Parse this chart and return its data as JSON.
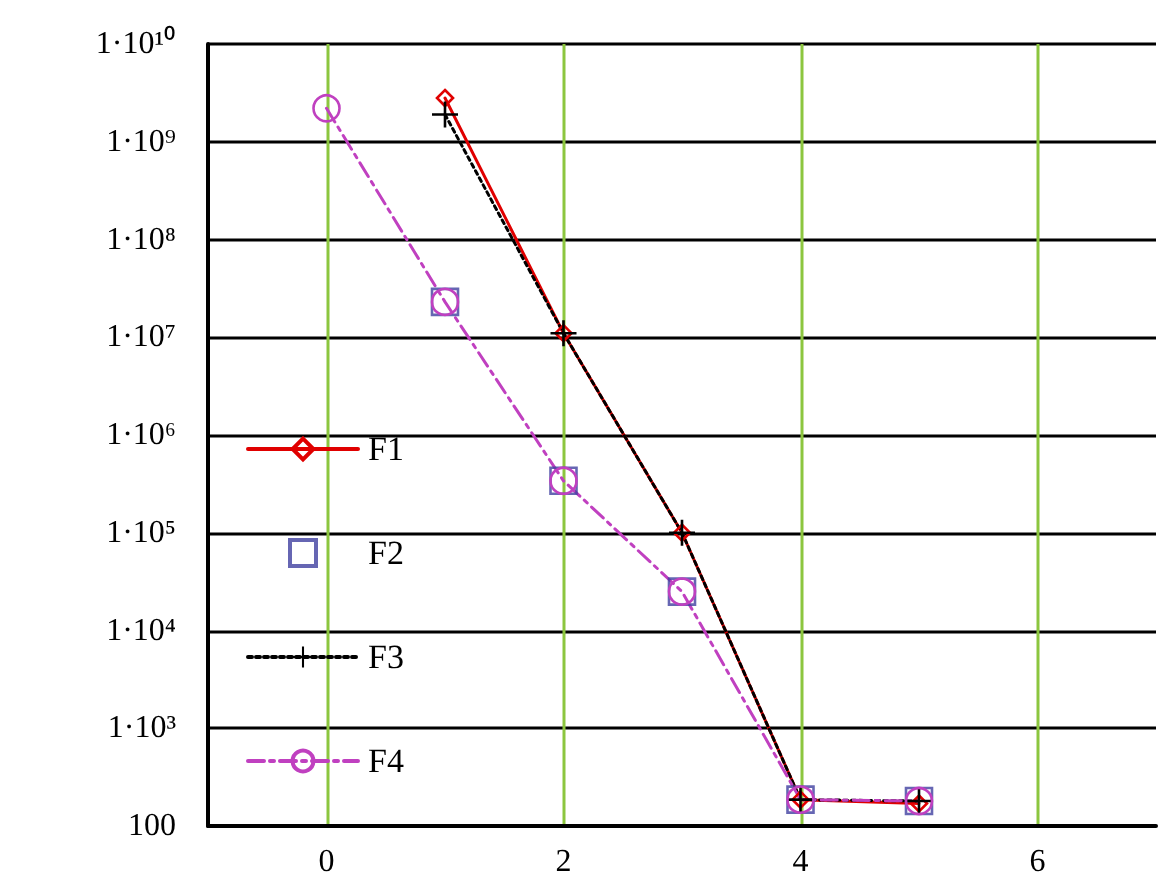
{
  "chart_data": {
    "type": "line",
    "series": [
      {
        "name": "F1",
        "color": "#e00000",
        "marker": "diamond",
        "line_style": "solid",
        "x": [
          1,
          2,
          3,
          4,
          5
        ],
        "values": [
          2800000000.0,
          11000000.0,
          100000.0,
          186,
          170
        ]
      },
      {
        "name": "F2",
        "color": "#4040a0",
        "type": "scatter",
        "marker": "square",
        "x": [
          1,
          2,
          3,
          4,
          5
        ],
        "values": [
          23000000.0,
          340000.0,
          25000.0,
          186,
          180
        ]
      },
      {
        "name": "F3",
        "color": "#000000",
        "marker": "cross",
        "line_style": "dotted",
        "x": [
          1,
          2,
          3,
          4,
          5
        ],
        "values": [
          1900000000.0,
          11000000.0,
          100000.0,
          186,
          180
        ]
      },
      {
        "name": "F4",
        "color": "#c040c0",
        "marker": "circle",
        "line_style": "dashed",
        "x": [
          0,
          1,
          2,
          3,
          4,
          5
        ],
        "values": [
          2200000000.0,
          23000000.0,
          340000.0,
          25000.0,
          186,
          180
        ]
      }
    ],
    "log": "y",
    "xlim": [
      -1,
      7
    ],
    "xticks": [
      0,
      2,
      4,
      6
    ],
    "ylim": [
      100,
      10000000000.0
    ],
    "yticks": [
      100,
      {
        "value": 1000,
        "label": "1·10³"
      },
      {
        "value": 10000,
        "label": "1·10⁴"
      },
      {
        "value": 100000,
        "label": "1·10⁵"
      },
      {
        "value": 1000000,
        "label": "1·10⁶"
      },
      {
        "value": 10000000,
        "label": "1·10⁷"
      },
      {
        "value": 100000000,
        "label": "1·10⁸"
      },
      {
        "value": 1000000000,
        "label": "1·10⁹"
      },
      {
        "value": 10000000000,
        "label": "1·10¹⁰"
      }
    ],
    "grid": true,
    "legend": "bottom left"
  }
}
